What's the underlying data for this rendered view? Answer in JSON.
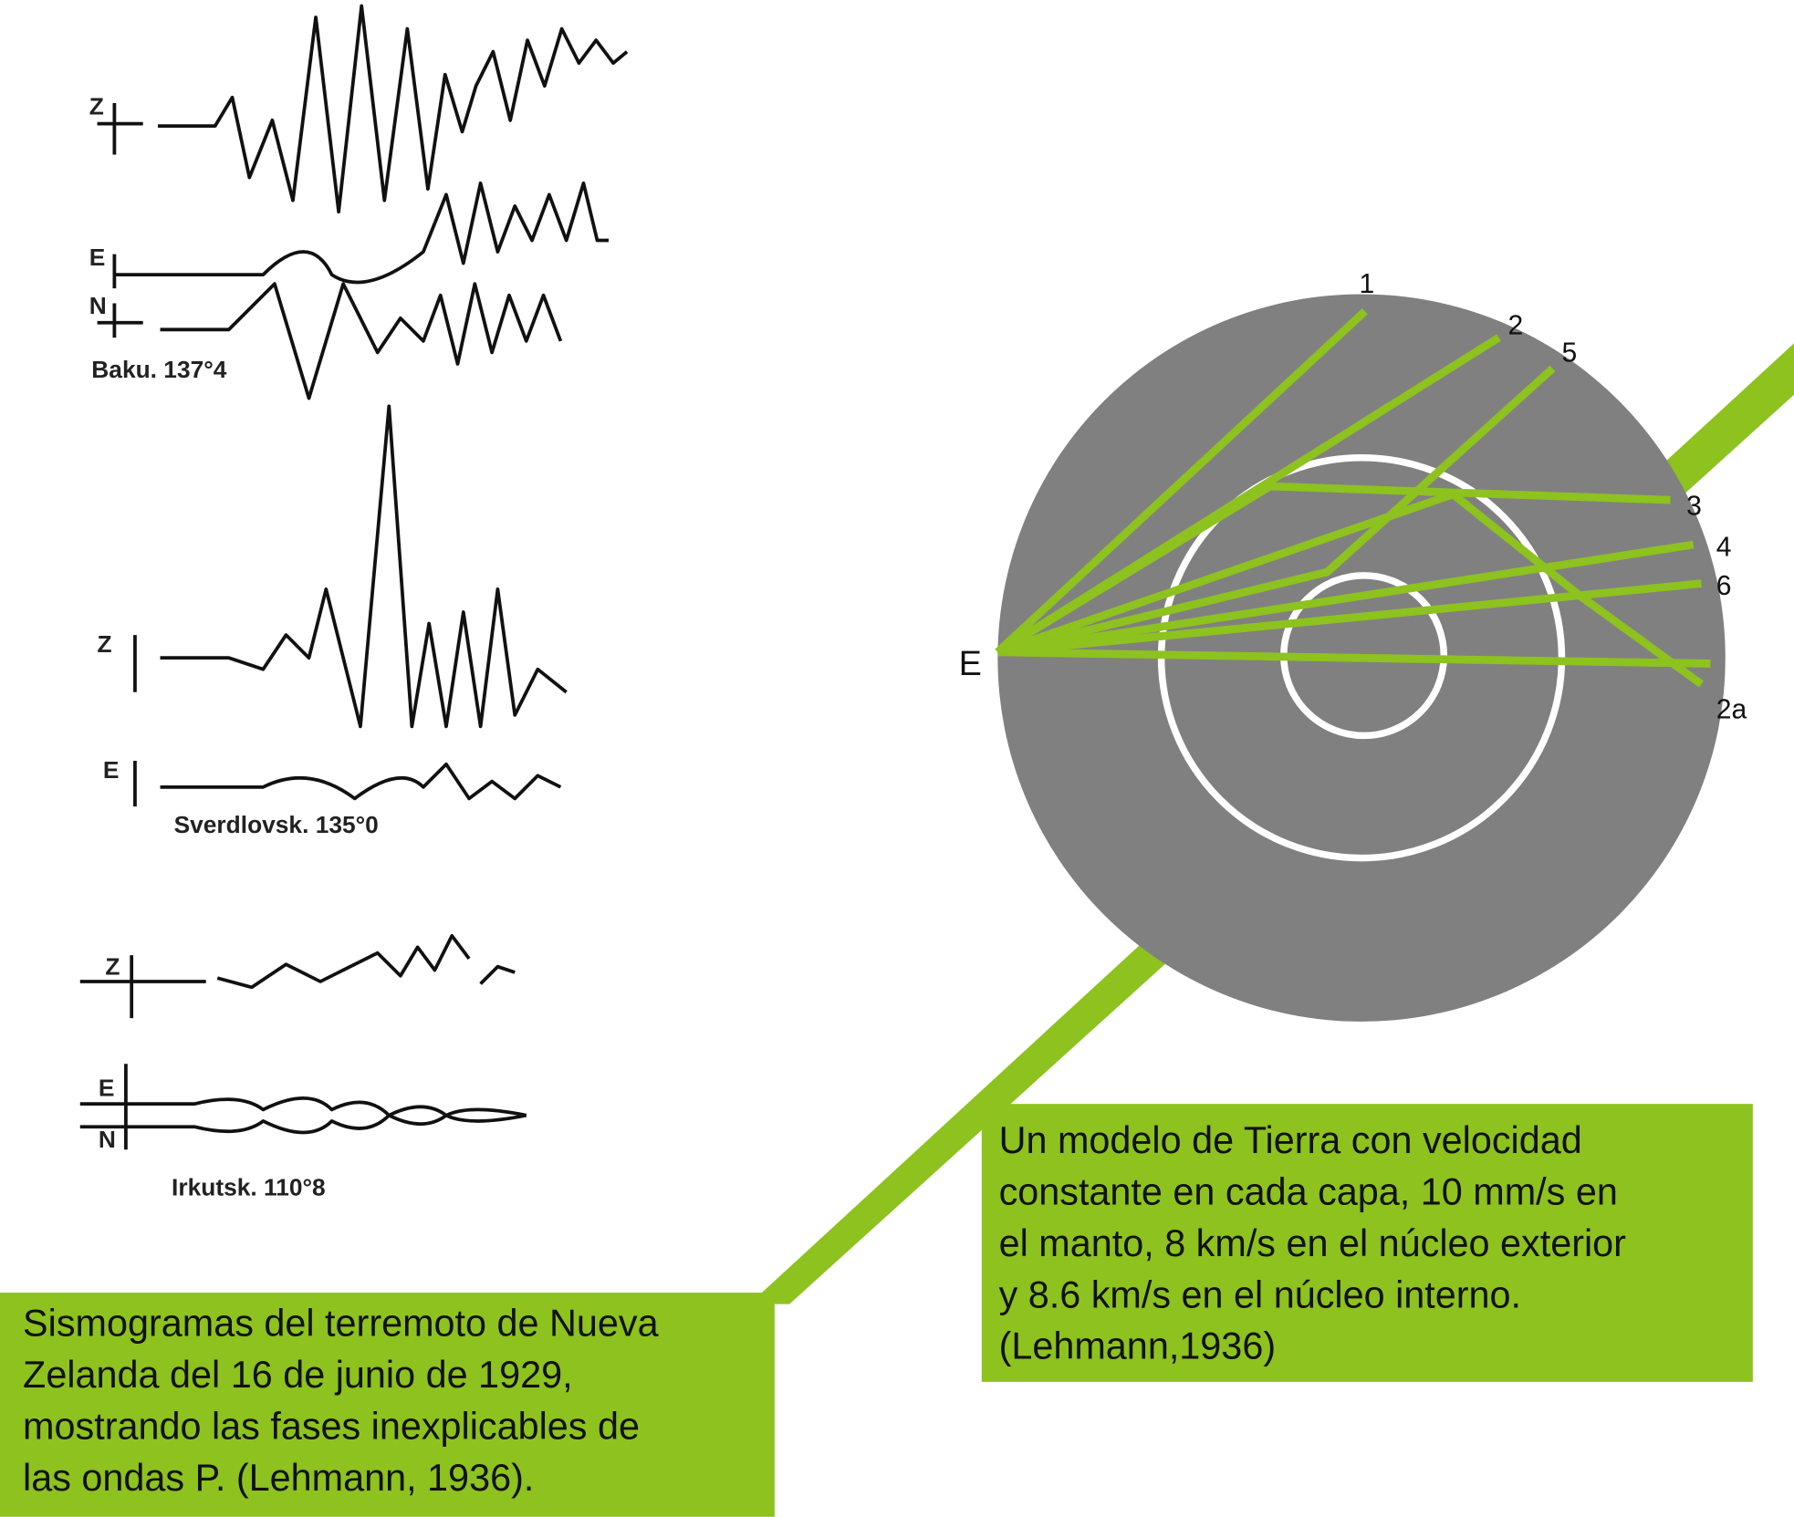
{
  "seismograms": [
    {
      "station": "Baku. 137°4",
      "components": [
        "Z",
        "E",
        "N"
      ]
    },
    {
      "station": "Sverdlovsk. 135°0",
      "components": [
        "Z",
        "E"
      ]
    },
    {
      "station": "Irkutsk. 110°8",
      "components": [
        "Z",
        "E",
        "N"
      ]
    }
  ],
  "earth_model": {
    "epicenter": "E",
    "ray_labels": [
      "1",
      "2",
      "5",
      "3",
      "4",
      "6",
      "2a"
    ]
  },
  "caption_left": {
    "lines": [
      "Sismogramas del terremoto de Nueva",
      "Zelanda del 16 de junio de 1929,",
      "mostrando las fases inexplicables de",
      "las ondas P. (Lehmann, 1936)."
    ]
  },
  "caption_right": {
    "lines": [
      "Un modelo de Tierra con velocidad",
      "constante en cada capa, 10 mm/s en",
      "el manto, 8 km/s en el núcleo exterior",
      "y 8.6 km/s en el núcleo interno.",
      "(Lehmann,1936)"
    ]
  }
}
